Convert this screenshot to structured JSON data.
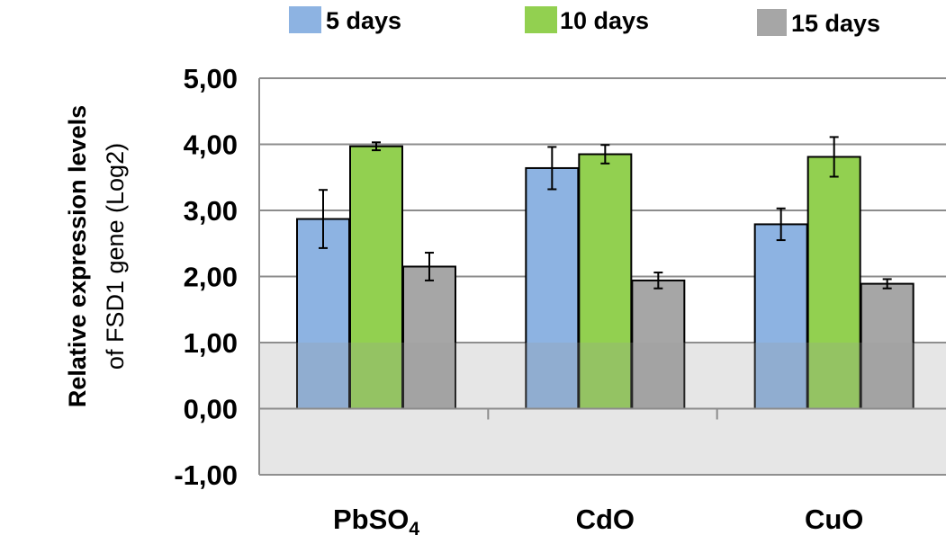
{
  "chart_data": {
    "type": "bar",
    "categories": [
      "PbSO4",
      "CdO",
      "CuO"
    ],
    "category_labels": [
      {
        "main": "PbSO",
        "sub": "4"
      },
      {
        "main": "CdO",
        "sub": ""
      },
      {
        "main": "CuO",
        "sub": ""
      }
    ],
    "series": [
      {
        "name": "5 days",
        "color": "#8DB3E2",
        "values": [
          2.87,
          3.64,
          2.79
        ],
        "errors": [
          0.44,
          0.32,
          0.24
        ]
      },
      {
        "name": "10 days",
        "color": "#92D050",
        "values": [
          3.97,
          3.85,
          3.81
        ],
        "errors": [
          0.06,
          0.14,
          0.3
        ]
      },
      {
        "name": "15 days",
        "color": "#A6A6A6",
        "values": [
          2.15,
          1.94,
          1.89
        ],
        "errors": [
          0.21,
          0.12,
          0.07
        ]
      }
    ],
    "ylabel_line1": "Relative expression levels",
    "ylabel_line2": "of FSD1 gene (Log2)",
    "ylim": [
      -1,
      5
    ],
    "yticks": [
      5,
      4,
      3,
      2,
      1,
      0,
      -1
    ],
    "ytick_labels": [
      "5,00",
      "4,00",
      "3,00",
      "2,00",
      "1,00",
      "0,00",
      "-1,00"
    ],
    "shaded_band": [
      -1,
      1
    ],
    "grid": true,
    "legend_position": "top"
  }
}
